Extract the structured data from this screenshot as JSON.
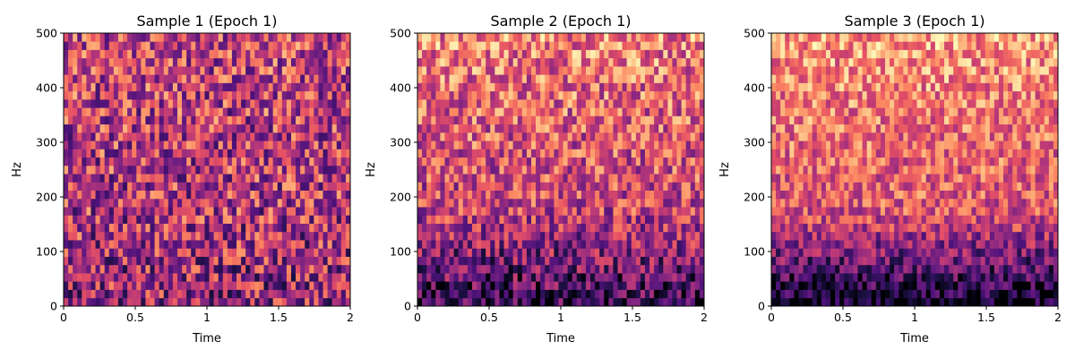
{
  "chart_data": [
    {
      "type": "heatmap",
      "title": "Sample 1 (Epoch 1)",
      "xlabel": "Time",
      "ylabel": "Hz",
      "xlim": [
        0,
        2
      ],
      "ylim": [
        0,
        500
      ],
      "xticks": [
        "0",
        "0.5",
        "1",
        "1.5",
        "2"
      ],
      "yticks": [
        "0",
        "100",
        "200",
        "300",
        "400",
        "500"
      ],
      "colormap": "magma",
      "grid": {
        "time_bins": 63,
        "freq_bins": 33
      },
      "intensity_profile": {
        "low_freq_level": 0.42,
        "mid_freq_level": 0.5,
        "high_freq_level": 0.56,
        "variation": 0.2
      }
    },
    {
      "type": "heatmap",
      "title": "Sample 2 (Epoch 1)",
      "xlabel": "Time",
      "ylabel": "Hz",
      "xlim": [
        0,
        2
      ],
      "ylim": [
        0,
        500
      ],
      "xticks": [
        "0",
        "0.5",
        "1",
        "1.5",
        "2"
      ],
      "yticks": [
        "0",
        "100",
        "200",
        "300",
        "400",
        "500"
      ],
      "colormap": "magma",
      "grid": {
        "time_bins": 63,
        "freq_bins": 33
      },
      "intensity_profile": {
        "low_freq_level": 0.18,
        "mid_freq_level": 0.55,
        "high_freq_level": 0.72,
        "variation": 0.17
      }
    },
    {
      "type": "heatmap",
      "title": "Sample 3 (Epoch 1)",
      "xlabel": "Time",
      "ylabel": "Hz",
      "xlim": [
        0,
        2
      ],
      "ylim": [
        0,
        500
      ],
      "xticks": [
        "0",
        "0.5",
        "1",
        "1.5",
        "2"
      ],
      "yticks": [
        "0",
        "100",
        "200",
        "300",
        "400",
        "500"
      ],
      "colormap": "magma",
      "grid": {
        "time_bins": 63,
        "freq_bins": 33
      },
      "intensity_profile": {
        "low_freq_level": 0.06,
        "mid_freq_level": 0.62,
        "high_freq_level": 0.78,
        "variation": 0.14
      }
    }
  ]
}
